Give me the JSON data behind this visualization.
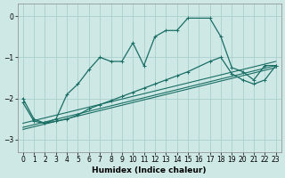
{
  "xlabel": "Humidex (Indice chaleur)",
  "xlim": [
    -0.5,
    23.5
  ],
  "ylim": [
    -3.3,
    0.3
  ],
  "yticks": [
    0,
    -1,
    -2,
    -3
  ],
  "xticks": [
    0,
    1,
    2,
    3,
    4,
    5,
    6,
    7,
    8,
    9,
    10,
    11,
    12,
    13,
    14,
    15,
    16,
    17,
    18,
    19,
    20,
    21,
    22,
    23
  ],
  "bg_color": "#cde8e5",
  "grid_color": "#aacfcc",
  "line_color": "#1a6e65",
  "volatile_x": [
    0,
    1,
    2,
    3,
    4,
    5,
    6,
    7,
    8,
    9,
    10,
    11,
    12,
    13,
    14,
    15,
    17,
    18,
    19,
    20,
    21,
    22,
    23
  ],
  "volatile_y": [
    -2.0,
    -2.5,
    -2.6,
    -2.5,
    -1.9,
    -1.65,
    -1.3,
    -1.0,
    -1.1,
    -1.1,
    -0.65,
    -1.2,
    -0.5,
    -0.35,
    -0.35,
    -0.05,
    -0.05,
    -0.5,
    -1.25,
    -1.35,
    -1.55,
    -1.2,
    -1.2
  ],
  "smooth_x": [
    0,
    1,
    2,
    3,
    4,
    5,
    6,
    7,
    8,
    9,
    10,
    11,
    12,
    13,
    14,
    15,
    17,
    18,
    19,
    20,
    21,
    22,
    23
  ],
  "smooth_y": [
    -2.1,
    -2.55,
    -2.6,
    -2.55,
    -2.5,
    -2.4,
    -2.25,
    -2.15,
    -2.05,
    -1.95,
    -1.85,
    -1.75,
    -1.65,
    -1.55,
    -1.45,
    -1.35,
    -1.1,
    -1.0,
    -1.4,
    -1.55,
    -1.65,
    -1.55,
    -1.2
  ],
  "trend1_x": [
    0,
    23
  ],
  "trend1_y": [
    -2.6,
    -1.1
  ],
  "trend2_x": [
    0,
    23
  ],
  "trend2_y": [
    -2.7,
    -1.2
  ],
  "trend3_x": [
    0,
    23
  ],
  "trend3_y": [
    -2.75,
    -1.25
  ]
}
